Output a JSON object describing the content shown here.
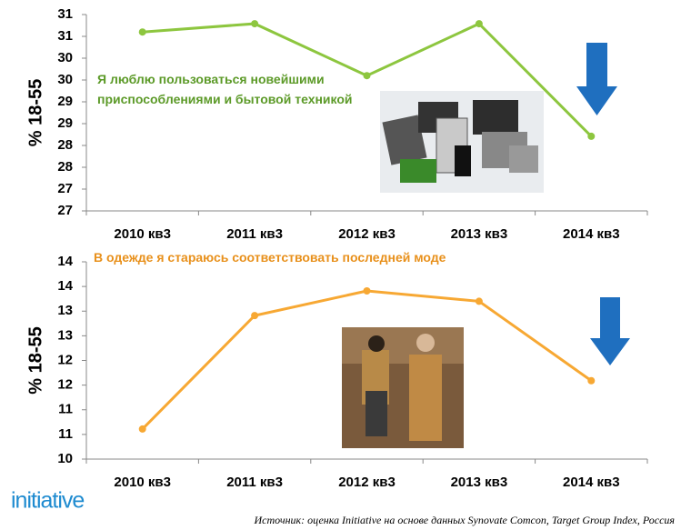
{
  "chart_data": [
    {
      "type": "line",
      "annotation": "Я люблю пользоваться  новейшими\nприспособлениями и бытовой техникой",
      "y_label": "% 18-55",
      "categories": [
        "2010 кв3",
        "2011 кв3",
        "2012 кв3",
        "2013 кв3",
        "2014 кв3"
      ],
      "series": [
        {
          "color": "#8dc63f",
          "values": [
            30.9,
            31.09,
            29.9,
            31.09,
            28.51
          ]
        }
      ],
      "ylim": [
        26.8,
        31.3
      ],
      "yticks": [
        {
          "value": 26.8,
          "label": "27"
        },
        {
          "value": 27.3,
          "label": "27"
        },
        {
          "value": 27.8,
          "label": "28"
        },
        {
          "value": 28.3,
          "label": "28"
        },
        {
          "value": 28.8,
          "label": "29"
        },
        {
          "value": 29.3,
          "label": "29"
        },
        {
          "value": 29.8,
          "label": "30"
        },
        {
          "value": 30.3,
          "label": "30"
        },
        {
          "value": 30.8,
          "label": "31"
        },
        {
          "value": 31.3,
          "label": "31"
        }
      ],
      "grid": false
    },
    {
      "type": "line",
      "annotation": "В одежде я стараюсь соответствовать  последней моде",
      "y_label": "% 18-55",
      "categories": [
        "2010 кв3",
        "2011 кв3",
        "2012 кв3",
        "2013 кв3",
        "2014 кв3"
      ],
      "series": [
        {
          "color": "#f7a833",
          "values": [
            10.61,
            12.91,
            13.41,
            13.2,
            11.59
          ]
        }
      ],
      "ylim": [
        10,
        14
      ],
      "yticks": [
        10,
        {
          "value": 10.5,
          "label": "11"
        },
        11,
        {
          "value": 11.5,
          "label": "12"
        },
        12,
        {
          "value": 12.5,
          "label": "13"
        },
        13,
        {
          "value": 13.5,
          "label": "14"
        },
        14
      ],
      "grid": false
    }
  ],
  "footer": {
    "logo": "initiative",
    "source": "Источник: оценка Initiative на основе данных Synovate Comcon, Target Group Index, Россия"
  }
}
